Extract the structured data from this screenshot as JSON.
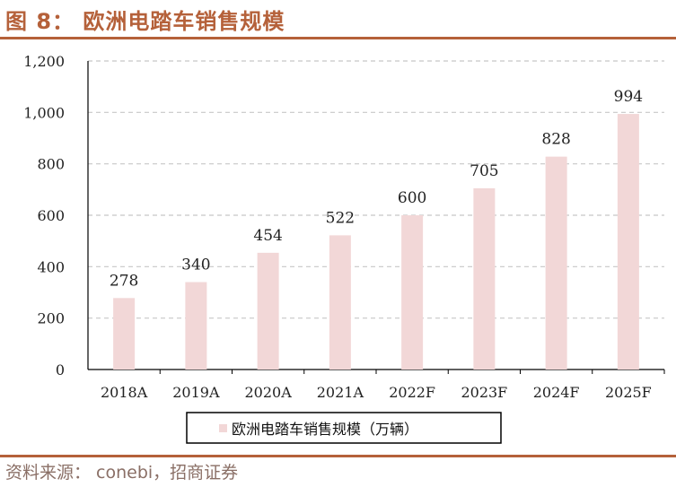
{
  "figure": {
    "title": "图 8： 欧洲电踏车销售规模",
    "source": "资料来源： conebi，招商证券"
  },
  "chart_data": {
    "type": "bar",
    "title": "欧洲电踏车销售规模",
    "categories": [
      "2018A",
      "2019A",
      "2020A",
      "2021A",
      "2022F",
      "2023F",
      "2024F",
      "2025F"
    ],
    "series": [
      {
        "name": "欧洲电踏车销售规模（万辆）",
        "values": [
          278,
          340,
          454,
          522,
          600,
          705,
          828,
          994
        ]
      }
    ],
    "ylim": [
      0,
      1200
    ],
    "yticks": [
      0,
      200,
      400,
      600,
      800,
      1000,
      1200
    ],
    "ytick_labels": [
      "0",
      "200",
      "400",
      "600",
      "800",
      "1,000",
      "1,200"
    ],
    "xlabel": "",
    "ylabel": "",
    "grid": true,
    "legend_position": "bottom",
    "bar_color": "#f2d7d7",
    "grid_color": "#c8c8c8"
  }
}
